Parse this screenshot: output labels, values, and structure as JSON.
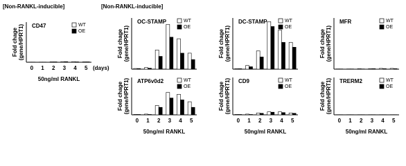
{
  "groups": [
    "[Non-RANKL-inducible]",
    "[Non-RANKL-inducible]"
  ],
  "chart_data": [
    {
      "type": "bar",
      "title": "CD47",
      "ylabel": [
        "Fold chage",
        "(gene/HPRT1)"
      ],
      "ylim": [
        0,
        200
      ],
      "categories": [
        "0",
        "1",
        "2",
        "3",
        "4",
        "5"
      ],
      "xunit": "(days)",
      "xlabel": "50ng/ml RANKL",
      "series": [
        {
          "name": "WT",
          "color": "#ffffff",
          "values": [
            1,
            1,
            2,
            3,
            3,
            2
          ]
        },
        {
          "name": "OE",
          "color": "#000000",
          "values": [
            1,
            1,
            2,
            3,
            2,
            2
          ]
        }
      ]
    },
    {
      "type": "bar",
      "title": "OC-STAMP",
      "ylabel": [
        "Fold chage",
        "(gene/HPRT1)"
      ],
      "ylim": [
        0,
        160
      ],
      "series": [
        {
          "name": "WT",
          "color": "#ffffff",
          "values": [
            2,
            5,
            60,
            140,
            95,
            50
          ]
        },
        {
          "name": "OE",
          "color": "#000000",
          "values": [
            2,
            3,
            40,
            100,
            50,
            30
          ]
        }
      ]
    },
    {
      "type": "bar",
      "title": "ATP6v0d2",
      "ylabel": [
        "Fold chage",
        "(gene/HPRT1)"
      ],
      "ylim": [
        0,
        100
      ],
      "categories": [
        "0",
        "1",
        "2",
        "3",
        "4",
        "5"
      ],
      "xlabel": "50ng/ml RANKL",
      "series": [
        {
          "name": "WT",
          "color": "#ffffff",
          "values": [
            1,
            2,
            25,
            60,
            55,
            35
          ]
        },
        {
          "name": "OE",
          "color": "#000000",
          "values": [
            1,
            1,
            20,
            45,
            40,
            20
          ]
        }
      ]
    },
    {
      "type": "bar",
      "title": "DC-STAMP",
      "ylabel": [
        "Fold chage",
        "(gene/HPRT1)"
      ],
      "ylim": [
        0,
        210
      ],
      "series": [
        {
          "name": "WT",
          "color": "#ffffff",
          "values": [
            2,
            15,
            75,
            195,
            160,
            110
          ]
        },
        {
          "name": "OE",
          "color": "#000000",
          "values": [
            2,
            10,
            50,
            175,
            110,
            90
          ]
        }
      ]
    },
    {
      "type": "bar",
      "title": "CD9",
      "ylabel": [
        "Fold chage",
        "(gene/HPRT1)"
      ],
      "ylim": [
        0,
        100
      ],
      "categories": [
        "0",
        "1",
        "2",
        "3",
        "4",
        "5"
      ],
      "xlabel": "50ng/ml RANKL",
      "series": [
        {
          "name": "WT",
          "color": "#ffffff",
          "values": [
            1,
            2,
            5,
            8,
            8,
            5
          ]
        },
        {
          "name": "OE",
          "color": "#000000",
          "values": [
            1,
            1,
            4,
            7,
            6,
            4
          ]
        }
      ]
    },
    {
      "type": "bar",
      "title": "MFR",
      "ylabel": [
        "Fold chage",
        "(gene/HPRT1)"
      ],
      "ylim": [
        0,
        200
      ],
      "series": [
        {
          "name": "WT",
          "color": "#ffffff",
          "values": [
            1,
            1,
            2,
            2,
            3,
            3
          ]
        },
        {
          "name": "OE",
          "color": "#000000",
          "values": [
            1,
            1,
            1,
            2,
            2,
            2
          ]
        }
      ]
    },
    {
      "type": "bar",
      "title": "TRERM2",
      "ylabel": [
        "Fold chage",
        "(gene/HPRT1)"
      ],
      "ylim": [
        0,
        100
      ],
      "categories": [
        "0",
        "1",
        "2",
        "3",
        "4",
        "5"
      ],
      "xlabel": "50ng/ml RANKL",
      "series": [
        {
          "name": "WT",
          "color": "#ffffff",
          "values": [
            0.5,
            0.5,
            0.5,
            0.5,
            0.5,
            0.5
          ]
        },
        {
          "name": "OE",
          "color": "#000000",
          "values": [
            0.5,
            0.5,
            0.5,
            0.5,
            0.5,
            0.5
          ]
        }
      ]
    }
  ]
}
